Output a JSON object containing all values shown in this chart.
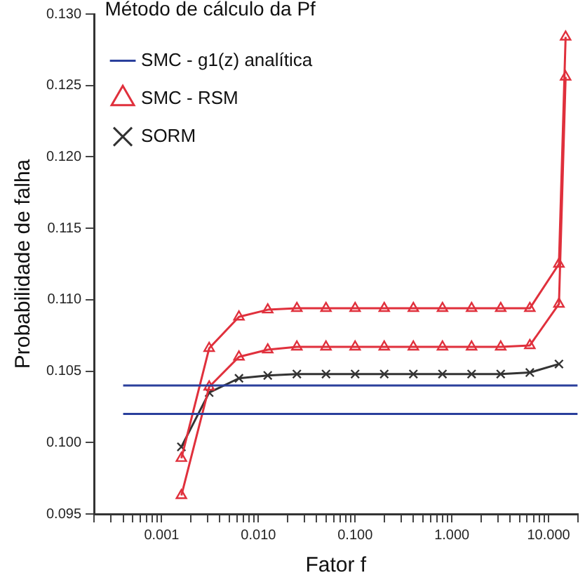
{
  "chart_data": {
    "type": "line",
    "xlabel": "Fator f",
    "ylabel": "Probabilidade de falha",
    "legend_title": "Método de cálculo da Pf",
    "legend": "top left",
    "log": "x",
    "grid": false,
    "line_style": "solid",
    "xlim": [
      0.0002,
      20
    ],
    "ylim": [
      0.095,
      0.13
    ],
    "xticks": [
      {
        "value": 0.0002,
        "label": null
      },
      {
        "value": 0.0003,
        "label": null
      },
      {
        "value": 0.0004,
        "label": null
      },
      {
        "value": 0.0005,
        "label": null
      },
      {
        "value": 0.0006,
        "label": null
      },
      {
        "value": 0.0007,
        "label": null
      },
      {
        "value": 0.0008,
        "label": null
      },
      {
        "value": 0.0009,
        "label": null
      },
      {
        "value": 0.001,
        "label": "0.001"
      },
      {
        "value": 0.002,
        "label": null
      },
      {
        "value": 0.003,
        "label": null
      },
      {
        "value": 0.004,
        "label": null
      },
      {
        "value": 0.005,
        "label": null
      },
      {
        "value": 0.006,
        "label": null
      },
      {
        "value": 0.007,
        "label": null
      },
      {
        "value": 0.008,
        "label": null
      },
      {
        "value": 0.009,
        "label": null
      },
      {
        "value": 0.01,
        "label": "0.010"
      },
      {
        "value": 0.02,
        "label": null
      },
      {
        "value": 0.03,
        "label": null
      },
      {
        "value": 0.04,
        "label": null
      },
      {
        "value": 0.05,
        "label": null
      },
      {
        "value": 0.06,
        "label": null
      },
      {
        "value": 0.07,
        "label": null
      },
      {
        "value": 0.08,
        "label": null
      },
      {
        "value": 0.09,
        "label": null
      },
      {
        "value": 0.1,
        "label": "0.100"
      },
      {
        "value": 0.2,
        "label": null
      },
      {
        "value": 0.3,
        "label": null
      },
      {
        "value": 0.4,
        "label": null
      },
      {
        "value": 0.5,
        "label": null
      },
      {
        "value": 0.6,
        "label": null
      },
      {
        "value": 0.7,
        "label": null
      },
      {
        "value": 0.8,
        "label": null
      },
      {
        "value": 0.9,
        "label": null
      },
      {
        "value": 1,
        "label": "1.000"
      },
      {
        "value": 2,
        "label": null
      },
      {
        "value": 3,
        "label": null
      },
      {
        "value": 4,
        "label": null
      },
      {
        "value": 5,
        "label": null
      },
      {
        "value": 6,
        "label": null
      },
      {
        "value": 7,
        "label": null
      },
      {
        "value": 8,
        "label": null
      },
      {
        "value": 9,
        "label": null
      },
      {
        "value": 10,
        "label": "10.000"
      },
      {
        "value": 20,
        "label": null
      }
    ],
    "yticks": [
      {
        "value": 0.095,
        "label": "0.095"
      },
      {
        "value": 0.1,
        "label": "0.100"
      },
      {
        "value": 0.105,
        "label": "0.105"
      },
      {
        "value": 0.11,
        "label": "0.110"
      },
      {
        "value": 0.115,
        "label": "0.115"
      },
      {
        "value": 0.12,
        "label": "0.120"
      },
      {
        "value": 0.125,
        "label": "0.125"
      },
      {
        "value": 0.13,
        "label": "0.130"
      }
    ],
    "series": [
      {
        "name": "SMC - g1(z) analítica",
        "color": "#2a3f9c",
        "marker": "none",
        "x": [
          0.0004,
          20
        ],
        "values": [
          0.104,
          0.104
        ]
      },
      {
        "color": "#2a3f9c",
        "marker": "none",
        "x": [
          0.0004,
          20
        ],
        "values": [
          0.102,
          0.102
        ]
      },
      {
        "name": "SMC - RSM",
        "color": "#e0303c",
        "marker": "triangle",
        "x": [
          0.0016,
          0.0031,
          0.0063,
          0.0125,
          0.025,
          0.05,
          0.1,
          0.2,
          0.4,
          0.8,
          1.6,
          3.2,
          6.4,
          12.8,
          15
        ],
        "values": [
          0.0989,
          0.1066,
          0.1088,
          0.1093,
          0.1094,
          0.1094,
          0.1094,
          0.1094,
          0.1094,
          0.1094,
          0.1094,
          0.1094,
          0.1094,
          0.1125,
          0.1284
        ]
      },
      {
        "color": "#e0303c",
        "marker": "triangle",
        "x": [
          0.0016,
          0.0031,
          0.0063,
          0.0125,
          0.025,
          0.05,
          0.1,
          0.2,
          0.4,
          0.8,
          1.6,
          3.2,
          6.4,
          12.8,
          15
        ],
        "values": [
          0.0963,
          0.1039,
          0.106,
          0.1065,
          0.1067,
          0.1067,
          0.1067,
          0.1067,
          0.1067,
          0.1067,
          0.1067,
          0.1067,
          0.1068,
          0.1097,
          0.1256
        ]
      },
      {
        "name": "SORM",
        "color": "#333333",
        "marker": "cross",
        "x": [
          0.0016,
          0.0031,
          0.0063,
          0.0125,
          0.025,
          0.05,
          0.1,
          0.2,
          0.4,
          0.8,
          1.6,
          3.2,
          6.4,
          12.8
        ],
        "values": [
          0.0997,
          0.1035,
          0.1045,
          0.1047,
          0.1048,
          0.1048,
          0.1048,
          0.1048,
          0.1048,
          0.1048,
          0.1048,
          0.1048,
          0.1049,
          0.1055
        ]
      }
    ]
  }
}
